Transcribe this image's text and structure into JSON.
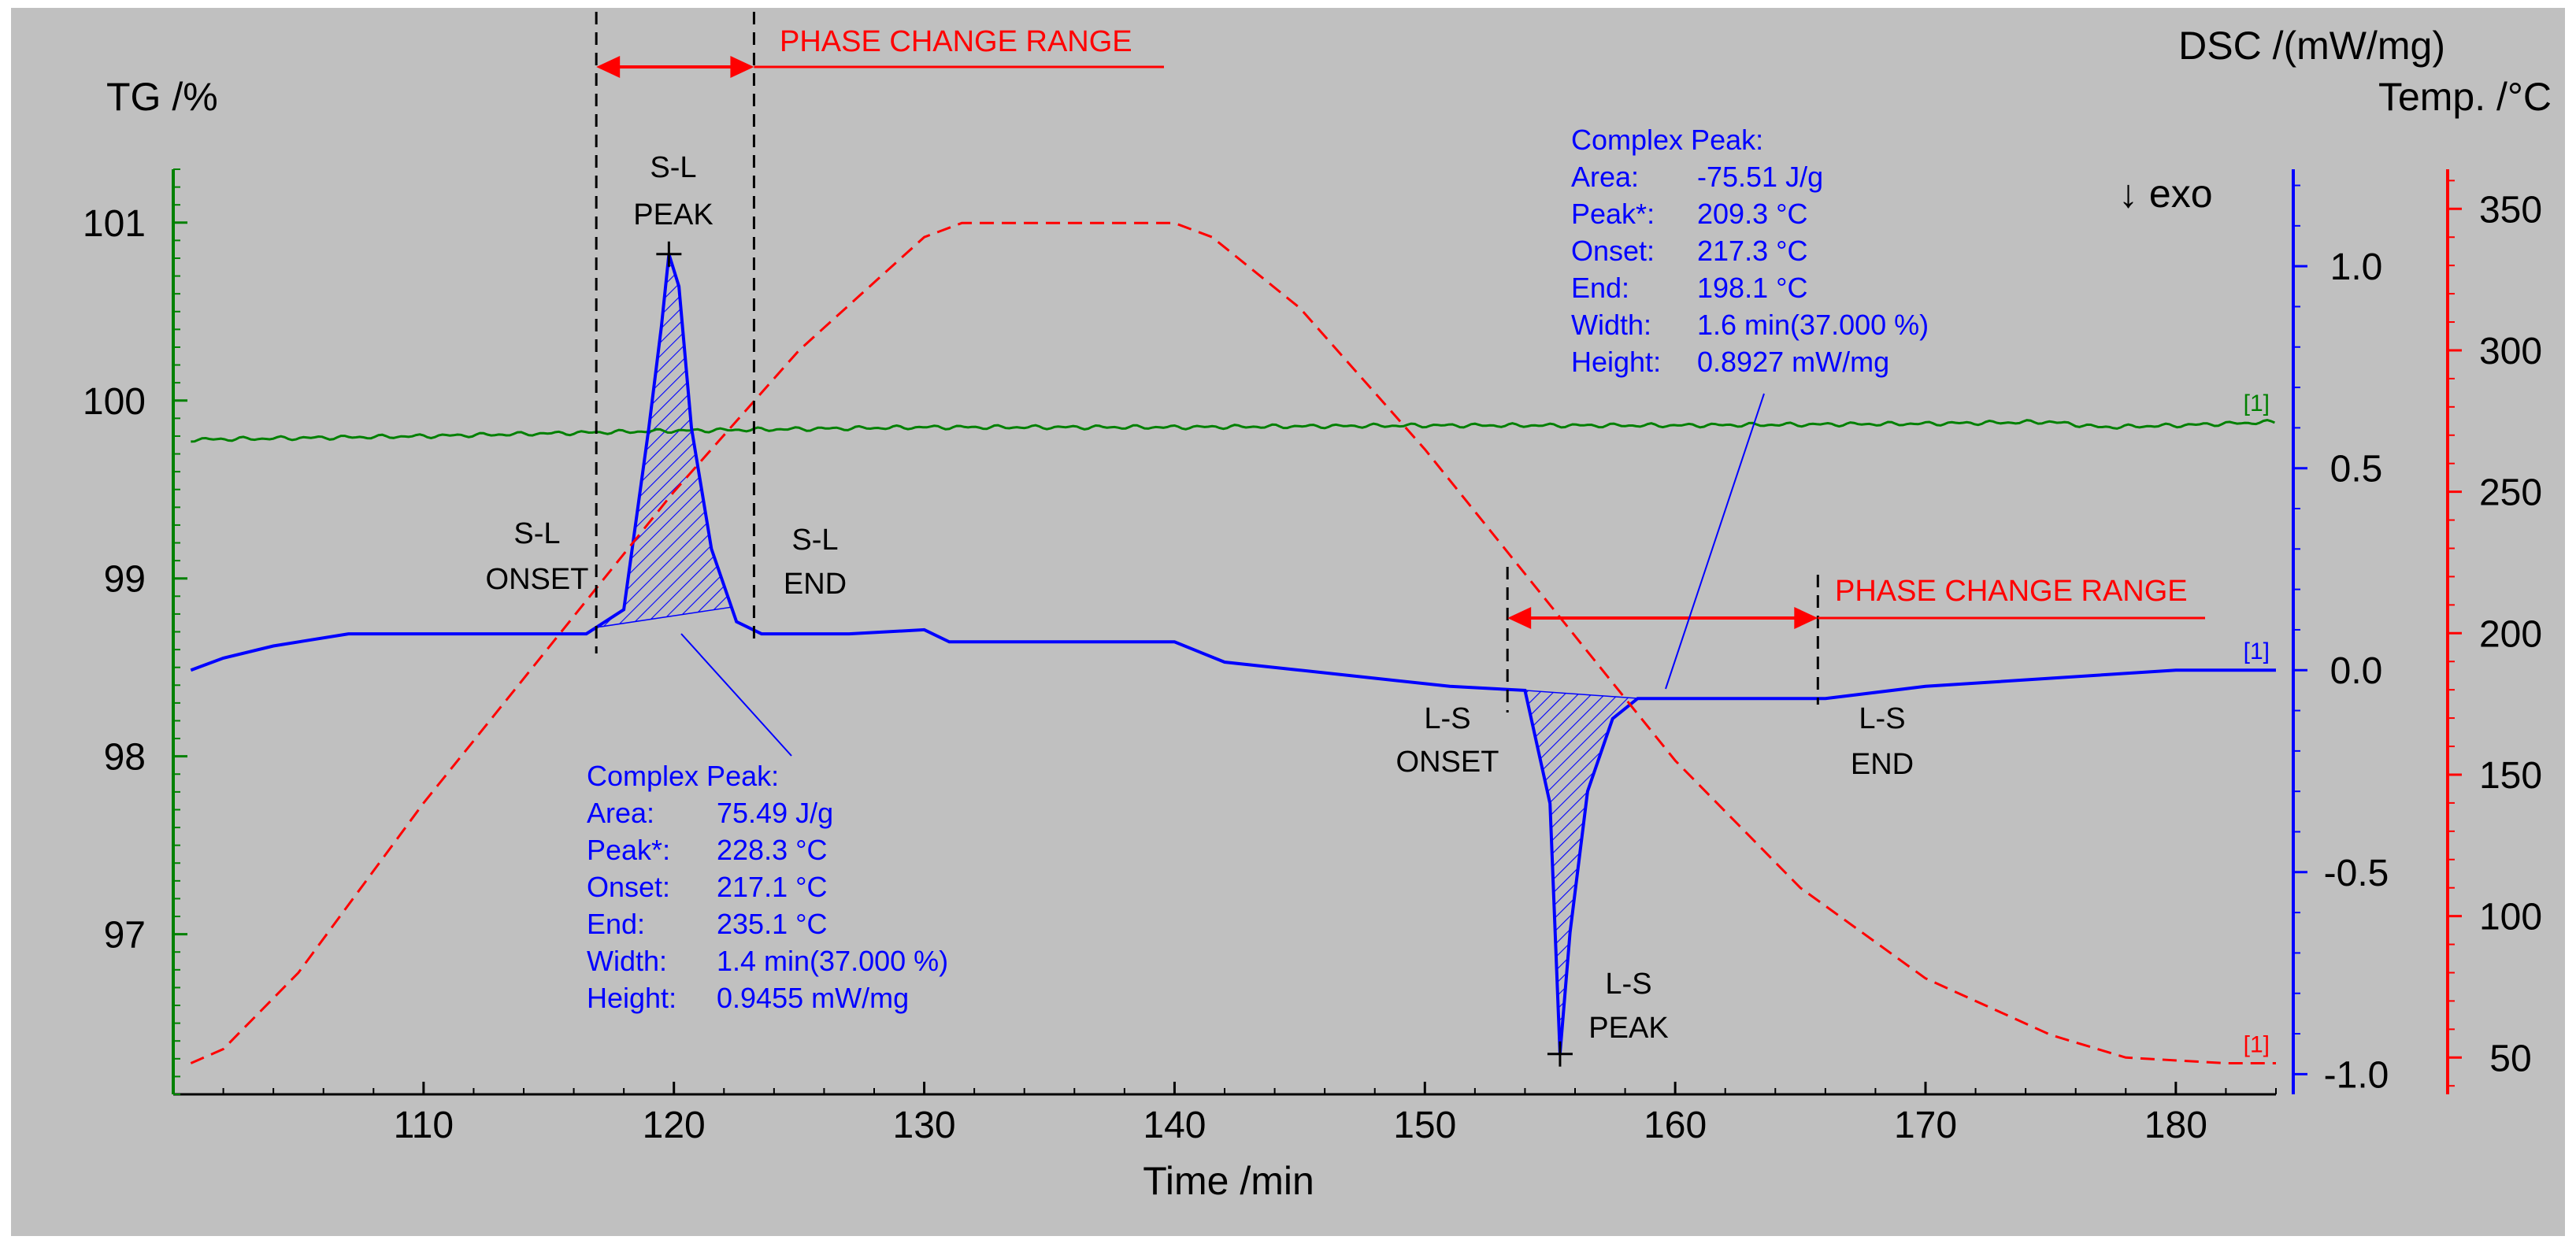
{
  "colors": {
    "background": "#c0c0c0",
    "tg": "#008000",
    "dsc": "#0000ff",
    "temp": "#ff0000",
    "marker": "#000000"
  },
  "chart_data": {
    "type": "line",
    "xlabel": "Time /min",
    "xlim": [
      100,
      184
    ],
    "xticks": [
      110,
      120,
      130,
      140,
      150,
      160,
      170,
      180
    ],
    "axes": {
      "tg": {
        "label": "TG /%",
        "range": [
          96.1,
          101.3
        ],
        "ticks": [
          97,
          98,
          99,
          100,
          101
        ]
      },
      "dsc": {
        "label": "DSC /(mW/mg)",
        "range": [
          -1.05,
          1.24
        ],
        "ticks": [
          -1.0,
          -0.5,
          0.0,
          0.5,
          1.0
        ],
        "tick_labels": [
          "-1.0",
          "-0.5",
          "0.0",
          "0.5",
          "1.0"
        ]
      },
      "temp": {
        "label": "Temp. /°C",
        "range": [
          37,
          364
        ],
        "ticks": [
          50,
          100,
          150,
          200,
          250,
          300,
          350
        ]
      }
    },
    "series": [
      {
        "name": "TG",
        "axis": "tg",
        "end_label": "[1]",
        "points": [
          [
            100.7,
            99.78
          ],
          [
            110,
            99.8
          ],
          [
            120,
            99.83
          ],
          [
            130,
            99.85
          ],
          [
            140,
            99.85
          ],
          [
            150,
            99.86
          ],
          [
            160,
            99.86
          ],
          [
            170,
            99.87
          ],
          [
            175,
            99.88
          ],
          [
            177,
            99.85
          ],
          [
            180,
            99.86
          ],
          [
            184,
            99.88
          ]
        ]
      },
      {
        "name": "DSC",
        "axis": "dsc",
        "end_label": "[1]",
        "points": [
          [
            100.7,
            0.0
          ],
          [
            102,
            0.03
          ],
          [
            104,
            0.06
          ],
          [
            107,
            0.09
          ],
          [
            110,
            0.09
          ],
          [
            114,
            0.09
          ],
          [
            116.5,
            0.09
          ],
          [
            118,
            0.15
          ],
          [
            119,
            0.6
          ],
          [
            119.5,
            0.85
          ],
          [
            119.8,
            1.03
          ],
          [
            120.2,
            0.95
          ],
          [
            120.7,
            0.6
          ],
          [
            121.5,
            0.3
          ],
          [
            122.5,
            0.12
          ],
          [
            123.5,
            0.09
          ],
          [
            127,
            0.09
          ],
          [
            130,
            0.1
          ],
          [
            131,
            0.07
          ],
          [
            134,
            0.07
          ],
          [
            137,
            0.07
          ],
          [
            140,
            0.07
          ],
          [
            142,
            0.02
          ],
          [
            145,
            0.0
          ],
          [
            148,
            -0.02
          ],
          [
            151,
            -0.04
          ],
          [
            154,
            -0.05
          ],
          [
            155,
            -0.33
          ],
          [
            155.4,
            -0.95
          ],
          [
            155.8,
            -0.65
          ],
          [
            156.5,
            -0.3
          ],
          [
            157.5,
            -0.12
          ],
          [
            158.5,
            -0.07
          ],
          [
            160,
            -0.07
          ],
          [
            163,
            -0.07
          ],
          [
            166,
            -0.07
          ],
          [
            170,
            -0.04
          ],
          [
            175,
            -0.02
          ],
          [
            180,
            0.0
          ],
          [
            184,
            0.0
          ]
        ]
      },
      {
        "name": "Temp",
        "axis": "temp",
        "dashed": true,
        "end_label": "[1]",
        "points": [
          [
            100.7,
            48
          ],
          [
            102,
            53
          ],
          [
            105,
            80
          ],
          [
            110,
            140
          ],
          [
            115,
            195
          ],
          [
            120,
            250
          ],
          [
            125,
            300
          ],
          [
            130,
            340
          ],
          [
            131.5,
            345
          ],
          [
            140,
            345
          ],
          [
            141.5,
            340
          ],
          [
            145,
            315
          ],
          [
            150,
            265
          ],
          [
            155,
            210
          ],
          [
            160,
            155
          ],
          [
            165,
            110
          ],
          [
            170,
            78
          ],
          [
            175,
            58
          ],
          [
            178,
            50
          ],
          [
            182,
            48
          ],
          [
            184,
            48
          ]
        ]
      }
    ],
    "annotations": {
      "exo_label": "↓ exo",
      "phase_change_label": "PHASE CHANGE RANGE",
      "heating": {
        "phase_start": 116.9,
        "phase_end": 123.2,
        "peak_time": 119.8,
        "label_peak": [
          "S-L",
          "PEAK"
        ],
        "label_onset": [
          "S-L",
          "ONSET"
        ],
        "label_end": [
          "S-L",
          "END"
        ],
        "complex_peak": [
          [
            "Complex Peak:",
            ""
          ],
          [
            "Area:",
            "75.49 J/g"
          ],
          [
            "Peak*:",
            "228.3 °C"
          ],
          [
            "Onset:",
            "217.1 °C"
          ],
          [
            "End:",
            "235.1 °C"
          ],
          [
            "Width:",
            "1.4 min(37.000 %)"
          ],
          [
            "Height:",
            "0.9455 mW/mg"
          ]
        ]
      },
      "cooling": {
        "phase_start": 153.3,
        "phase_end": 165.7,
        "peak_time": 155.4,
        "label_peak": [
          "L-S",
          "PEAK"
        ],
        "label_onset": [
          "L-S",
          "ONSET"
        ],
        "label_end": [
          "L-S",
          "END"
        ],
        "complex_peak": [
          [
            "Complex Peak:",
            ""
          ],
          [
            "Area:",
            "-75.51 J/g"
          ],
          [
            "Peak*:",
            "209.3 °C"
          ],
          [
            "Onset:",
            "217.3 °C"
          ],
          [
            "End:",
            "198.1 °C"
          ],
          [
            "Width:",
            "1.6 min(37.000 %)"
          ],
          [
            "Height:",
            "0.8927 mW/mg"
          ]
        ]
      }
    }
  }
}
